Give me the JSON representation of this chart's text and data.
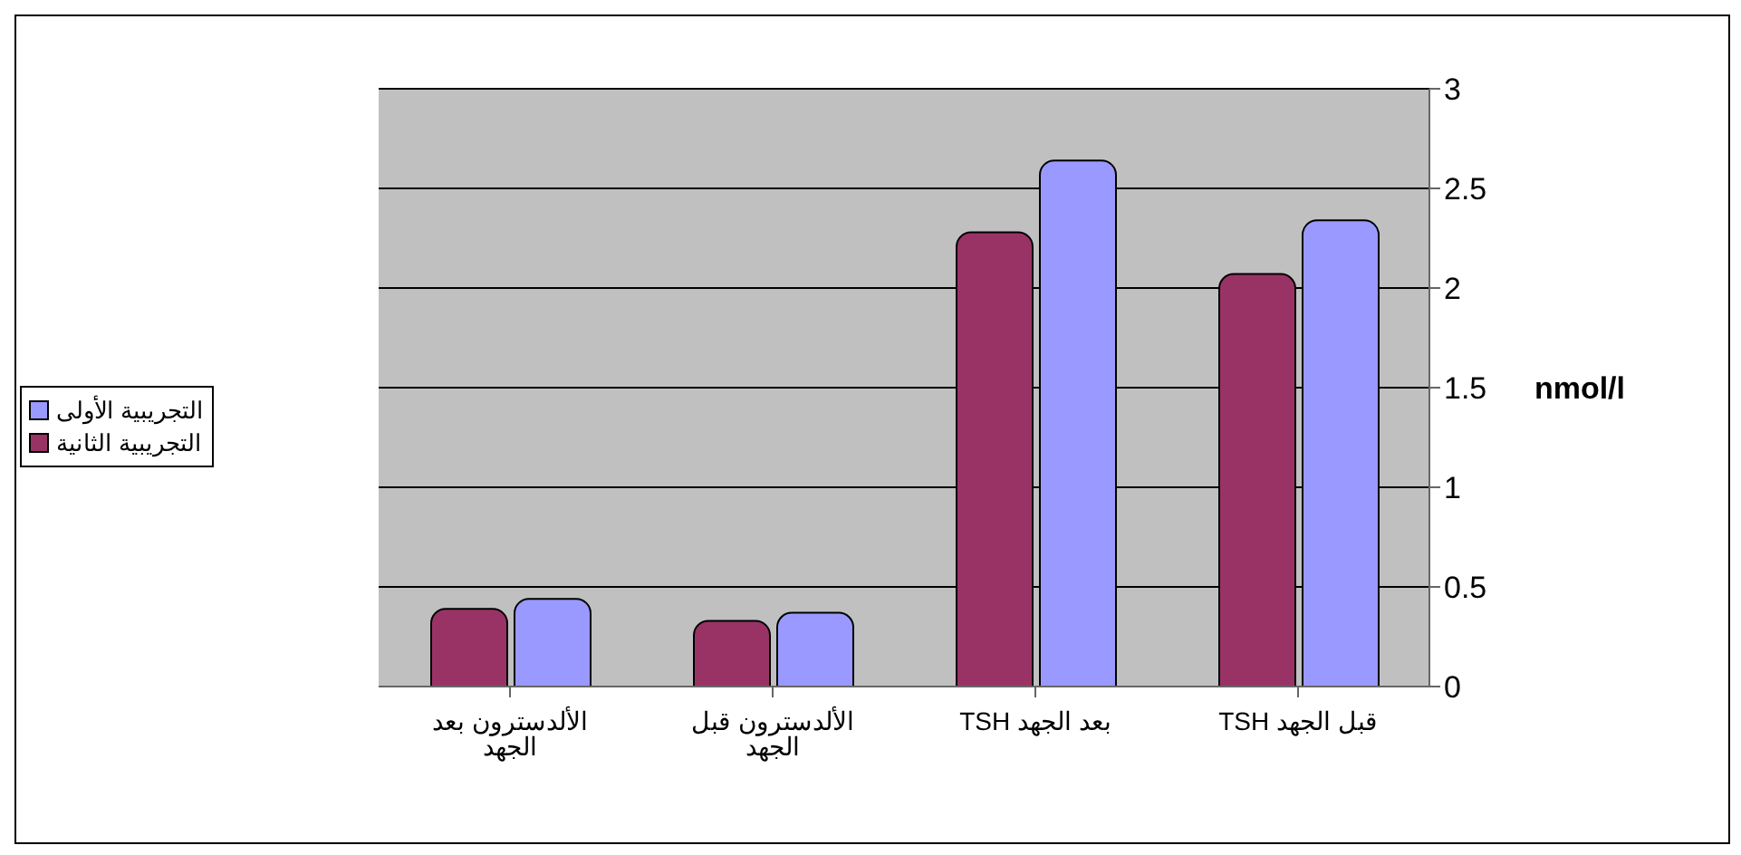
{
  "chart_data": {
    "type": "bar",
    "categories": [
      "الألدسترون بعد الجهد",
      "الألدسترون قبل الجهد",
      "TSH بعد الجهد",
      "TSH قبل الجهد"
    ],
    "series": [
      {
        "name": "التجريبية الثانية",
        "color": "#993366",
        "values": [
          0.39,
          0.33,
          2.28,
          2.07
        ]
      },
      {
        "name": "التجريبية الأولى",
        "color": "#9999ff",
        "values": [
          0.44,
          0.37,
          2.64,
          2.34
        ]
      }
    ],
    "ylabel": "nmol/l",
    "ylim": [
      0,
      3
    ],
    "yticks": [
      0,
      0.5,
      1,
      1.5,
      2,
      2.5,
      3
    ],
    "grid": "y",
    "legend": "left"
  }
}
